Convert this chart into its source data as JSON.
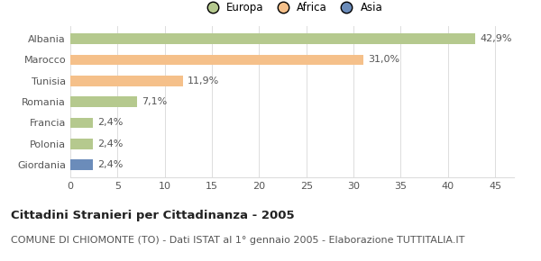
{
  "categories": [
    "Albania",
    "Marocco",
    "Tunisia",
    "Romania",
    "Francia",
    "Polonia",
    "Giordania"
  ],
  "values": [
    42.9,
    31.0,
    11.9,
    7.1,
    2.4,
    2.4,
    2.4
  ],
  "labels": [
    "42,9%",
    "31,0%",
    "11,9%",
    "7,1%",
    "2,4%",
    "2,4%",
    "2,4%"
  ],
  "colors": [
    "#b5c98e",
    "#f5c08a",
    "#f5c08a",
    "#b5c98e",
    "#b5c98e",
    "#b5c98e",
    "#6b8cba"
  ],
  "legend_labels": [
    "Europa",
    "Africa",
    "Asia"
  ],
  "legend_colors": [
    "#b5c98e",
    "#f5c08a",
    "#6b8cba"
  ],
  "xlim": [
    0,
    47
  ],
  "xticks": [
    0,
    5,
    10,
    15,
    20,
    25,
    30,
    35,
    40,
    45
  ],
  "title_bold": "Cittadini Stranieri per Cittadinanza - 2005",
  "subtitle": "COMUNE DI CHIOMONTE (TO) - Dati ISTAT al 1° gennaio 2005 - Elaborazione TUTTITALIA.IT",
  "background_color": "#ffffff",
  "grid_color": "#dddddd",
  "bar_height": 0.5,
  "label_fontsize": 8,
  "tick_fontsize": 8,
  "title_fontsize": 9.5,
  "subtitle_fontsize": 8
}
